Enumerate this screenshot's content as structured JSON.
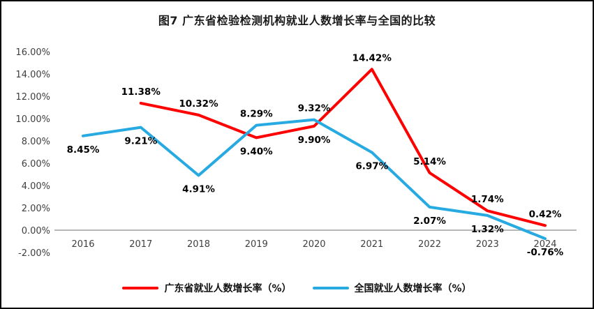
{
  "chart_data": {
    "type": "line",
    "title": "图7  广东省检验检测机构就业人数增长率与全国的比较",
    "categories": [
      "2016",
      "2017",
      "2018",
      "2019",
      "2020",
      "2021",
      "2022",
      "2023",
      "2024"
    ],
    "series": [
      {
        "name": "广东省就业人数增长率（%）",
        "color": "#FE0000",
        "values": [
          null,
          11.38,
          10.32,
          8.29,
          9.32,
          14.42,
          5.14,
          1.74,
          0.42
        ],
        "point_labels": [
          "",
          "11.38%",
          "10.32%",
          "8.29%",
          "9.32%",
          "14.42%",
          "5.14%",
          "1.74%",
          "0.42%"
        ],
        "label_position": "above"
      },
      {
        "name": "全国就业人数增长率（%）",
        "color": "#27AAE1",
        "values": [
          8.45,
          9.21,
          4.91,
          9.4,
          9.9,
          6.97,
          2.07,
          1.32,
          -0.76
        ],
        "point_labels": [
          "8.45%",
          "9.21%",
          "4.91%",
          "9.40%",
          "9.90%",
          "6.97%",
          "2.07%",
          "1.32%",
          "-0.76%"
        ],
        "label_position": "below"
      }
    ],
    "y_axis": {
      "min": -2,
      "max": 16,
      "step": 2,
      "tick_values": [
        16,
        14,
        12,
        10,
        8,
        6,
        4,
        2,
        0,
        -2
      ],
      "tick_labels": [
        "16.00%",
        "14.00%",
        "12.00%",
        "10.00%",
        "8.00%",
        "6.00%",
        "4.00%",
        "2.00%",
        "0.00%",
        "-2.00%"
      ]
    },
    "grid": "off",
    "legend_position": "bottom",
    "axis_color": "#8c8c8c",
    "tick_text_color": "#3f3f3f"
  }
}
